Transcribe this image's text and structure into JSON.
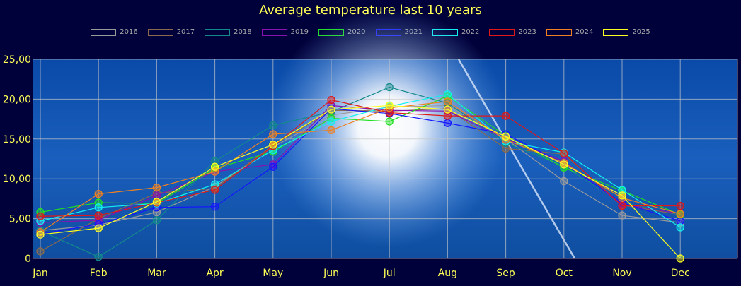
{
  "chart_data": {
    "type": "line",
    "title": "Average temperature last 10 years",
    "xlabel": "",
    "ylabel": "",
    "categories": [
      "Jan",
      "Feb",
      "Mar",
      "Apr",
      "May",
      "Jun",
      "Jul",
      "Aug",
      "Sep",
      "Oct",
      "Nov",
      "Dec"
    ],
    "ylim": [
      0,
      25
    ],
    "yticks": [
      "0",
      "5,00",
      "10,00",
      "15,00",
      "20,00",
      "25,00"
    ],
    "grid": true,
    "legend_position": "top-center",
    "series": [
      {
        "name": "2016",
        "color": "#9a9a9a",
        "values": [
          3.5,
          4.2,
          5.8,
          9.0,
          14.0,
          18.0,
          19.0,
          19.2,
          15.0,
          9.7,
          5.4,
          4.5
        ]
      },
      {
        "name": "2017",
        "color": "#8a6a4a",
        "values": [
          0.9,
          5.0,
          8.2,
          8.8,
          14.2,
          18.6,
          18.5,
          18.8,
          13.8,
          13.1,
          6.7,
          5.5
        ]
      },
      {
        "name": "2018",
        "color": "#128a8a",
        "values": [
          3.5,
          0.2,
          4.8,
          12.2,
          16.7,
          18.4,
          21.5,
          19.5,
          14.5,
          11.6,
          7.0,
          5.5
        ]
      },
      {
        "name": "2019",
        "color": "#8a10b0",
        "values": [
          4.5,
          4.8,
          7.9,
          10.9,
          11.8,
          19.2,
          18.6,
          18.5,
          15.0,
          12.2,
          6.8,
          5.6
        ]
      },
      {
        "name": "2020",
        "color": "#20e020",
        "values": [
          5.8,
          7.0,
          6.9,
          11.3,
          13.4,
          17.6,
          17.2,
          20.4,
          15.4,
          11.4,
          8.5,
          5.5
        ]
      },
      {
        "name": "2021",
        "color": "#1515ff",
        "values": [
          3.1,
          4.3,
          6.4,
          6.5,
          11.5,
          18.8,
          18.2,
          17.0,
          15.6,
          11.9,
          7.0,
          4.7
        ]
      },
      {
        "name": "2022",
        "color": "#10f0f0",
        "values": [
          4.7,
          6.4,
          6.9,
          9.3,
          13.6,
          17.2,
          19.1,
          20.6,
          14.7,
          13.3,
          8.6,
          3.9
        ]
      },
      {
        "name": "2023",
        "color": "#e01818",
        "values": [
          5.3,
          5.4,
          7.0,
          8.6,
          14.1,
          19.9,
          18.3,
          17.9,
          17.9,
          13.2,
          6.6,
          6.6
        ]
      },
      {
        "name": "2024",
        "color": "#f08020",
        "values": [
          3.3,
          8.1,
          8.9,
          10.9,
          15.6,
          16.1,
          18.9,
          19.7,
          14.9,
          12.0,
          7.6,
          5.6
        ]
      },
      {
        "name": "2025",
        "color": "#ffff20",
        "values": [
          3.0,
          3.8,
          7.1,
          11.5,
          14.3,
          18.7,
          19.2,
          18.7,
          15.3,
          11.8,
          7.9,
          0.0
        ]
      }
    ]
  }
}
